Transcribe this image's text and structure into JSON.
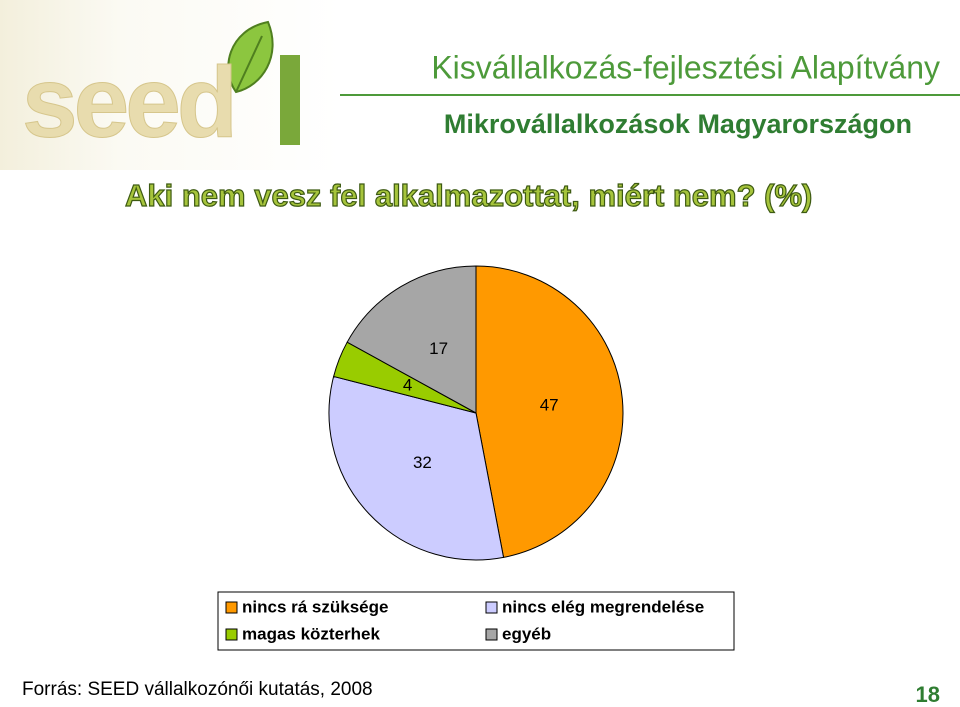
{
  "header": {
    "logo": "seed",
    "organization": "Kisvállalkozás-fejlesztési Alapítvány",
    "subtitle": "Mikrovállalkozások Magyarországon"
  },
  "chart_data": {
    "type": "pie",
    "title": "Aki nem vesz fel alkalmazottat, miért nem? (%)",
    "categories": [
      "nincs rá szüksége",
      "nincs elég megrendelése",
      "magas közterhek",
      "egyéb"
    ],
    "values": [
      47,
      32,
      4,
      17
    ],
    "colors": [
      "#ff9900",
      "#ccccff",
      "#99cc00",
      "#a6a6a6"
    ],
    "legend": "bottom"
  },
  "footer": {
    "source": "Forrás: SEED vállalkozónői kutatás, 2008",
    "page": "18"
  }
}
